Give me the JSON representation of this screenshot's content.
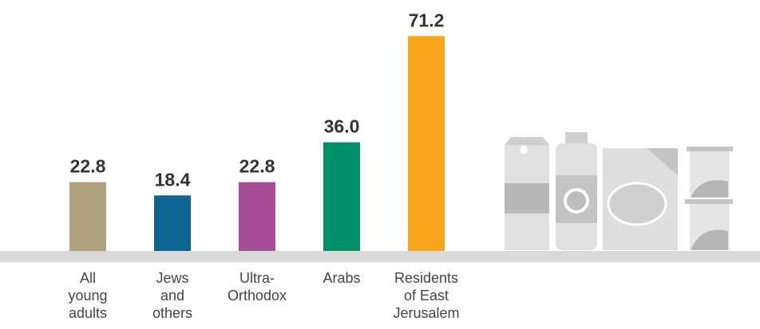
{
  "chart_data": {
    "type": "bar",
    "categories": [
      "All young adults",
      "Jews and others",
      "Ultra-Orthodox",
      "Arabs",
      "Residents of East Jerusalem"
    ],
    "values": [
      22.8,
      18.4,
      22.8,
      36,
      71.2
    ],
    "value_labels": [
      "22.8",
      "18.4",
      "22.8",
      "36.0",
      "71.2"
    ],
    "colors": [
      "#b0a27f",
      "#0f6592",
      "#a84e97",
      "#00906a",
      "#f8a51c"
    ],
    "ylim": [
      0,
      80
    ]
  }
}
